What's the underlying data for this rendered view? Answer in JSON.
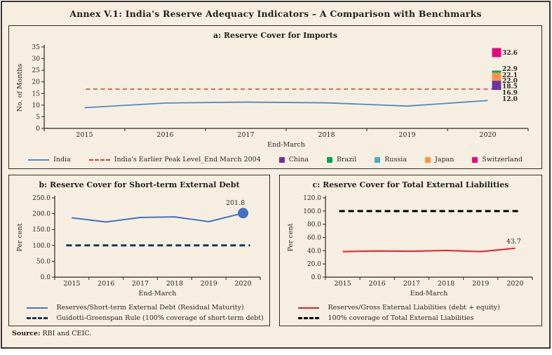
{
  "page": {
    "title": "Annex V.1: India's Reserve Adequacy Indicators – A Comparison with Benchmarks",
    "source_label": "Source:",
    "source_text": " RBI and CEIC."
  },
  "chart_data": [
    {
      "type": "line",
      "title": "a: Reserve Cover for Imports",
      "ylabel": "No. of Months",
      "xlabel": "End-March",
      "ylim": [
        0,
        35
      ],
      "ytick_values": [
        0,
        5,
        10,
        15,
        20,
        25,
        30,
        35
      ],
      "ytick_labels": [
        "0",
        "5",
        "10",
        "15",
        "20",
        "25",
        "30",
        "35"
      ],
      "categories": [
        "2015",
        "2016",
        "2017",
        "2018",
        "2019",
        "2020"
      ],
      "grid": false,
      "legend_position": "bottom",
      "series": [
        {
          "name": "India",
          "color": "#5b84c4",
          "values": [
            8.9,
            10.9,
            11.3,
            11.0,
            9.6,
            12.0
          ]
        },
        {
          "name": "India's Earlier Peak Level_End March 2004",
          "color": "#d43a3f",
          "flat": true,
          "values": [
            16.9,
            16.9,
            16.9,
            16.9,
            16.9,
            16.9
          ]
        }
      ],
      "benchmarks": [
        {
          "name": "China",
          "color": "#7030a0",
          "value": 18.5
        },
        {
          "name": "Brazil",
          "color": "#00a651",
          "value": 22.9
        },
        {
          "name": "Russia",
          "color": "#4bacc6",
          "value": 22.1
        },
        {
          "name": "Japan",
          "color": "#f79646",
          "value": 22.0
        },
        {
          "name": "Switzerland",
          "color": "#e5097f",
          "value": 32.6
        }
      ],
      "value_labels": [
        {
          "text": "32.6",
          "color": "#e5097f"
        },
        {
          "text": "22.9",
          "color": "#00a651"
        },
        {
          "text": "22.1",
          "color": "#4bacc6"
        },
        {
          "text": "22.0",
          "color": "#f79646"
        },
        {
          "text": "18.5",
          "color": "#7030a0"
        },
        {
          "text": "16.9",
          "color": "#d43a3f"
        },
        {
          "text": "12.0",
          "color": "#5b84c4"
        }
      ]
    },
    {
      "type": "line",
      "title": "b: Reserve Cover for Short-term External Debt",
      "ylabel": "Per cent",
      "xlabel": "End-March",
      "ylim": [
        0,
        250
      ],
      "ytick_values": [
        0,
        50,
        100,
        150,
        200,
        250
      ],
      "ytick_labels": [
        "0.0",
        "50.0",
        "100.0",
        "150.0",
        "200.0",
        "250.0"
      ],
      "categories": [
        "2015",
        "2016",
        "2017",
        "2018",
        "2019",
        "2020"
      ],
      "grid": false,
      "legend_position": "bottom",
      "series": [
        {
          "name": "Reserves/Short-term External Debt (Residual Maturity)",
          "color": "#4472c4",
          "values": [
            187.0,
            174.0,
            188.0,
            190.0,
            175.0,
            201.8
          ],
          "dot_last": true
        },
        {
          "name": "Guidotti-Greenspan Rule (100% coverage of short-term debt)",
          "color": "#17365d",
          "flat": true,
          "values": [
            100,
            100,
            100,
            100,
            100,
            100
          ]
        }
      ],
      "last_value_label": {
        "text": "201.8",
        "color": "#2b2722"
      }
    },
    {
      "type": "line",
      "title": "c: Reserve Cover for Total External Liabilities",
      "ylabel": "Per cent",
      "xlabel": "End-March",
      "ylim": [
        0,
        120
      ],
      "ytick_values": [
        0,
        20,
        40,
        60,
        80,
        100,
        120
      ],
      "ytick_labels": [
        "0.0",
        "20.0",
        "40.0",
        "60.0",
        "80.0",
        "100.0",
        "120.0"
      ],
      "categories": [
        "2015",
        "2016",
        "2017",
        "2018",
        "2019",
        "2020"
      ],
      "grid": false,
      "legend_position": "bottom",
      "series": [
        {
          "name": "Reserves/Gross External Liabilities (debt + equity)",
          "color": "#ed1c24",
          "values": [
            38.6,
            39.6,
            39.2,
            40.4,
            38.6,
            43.7
          ]
        },
        {
          "name": "100% coverage of Total External Liabilities",
          "color": "#000000",
          "flat": true,
          "values": [
            100,
            100,
            100,
            100,
            100,
            100
          ]
        }
      ],
      "last_value_label": {
        "text": "43.7",
        "color": "#2b2722"
      }
    }
  ]
}
